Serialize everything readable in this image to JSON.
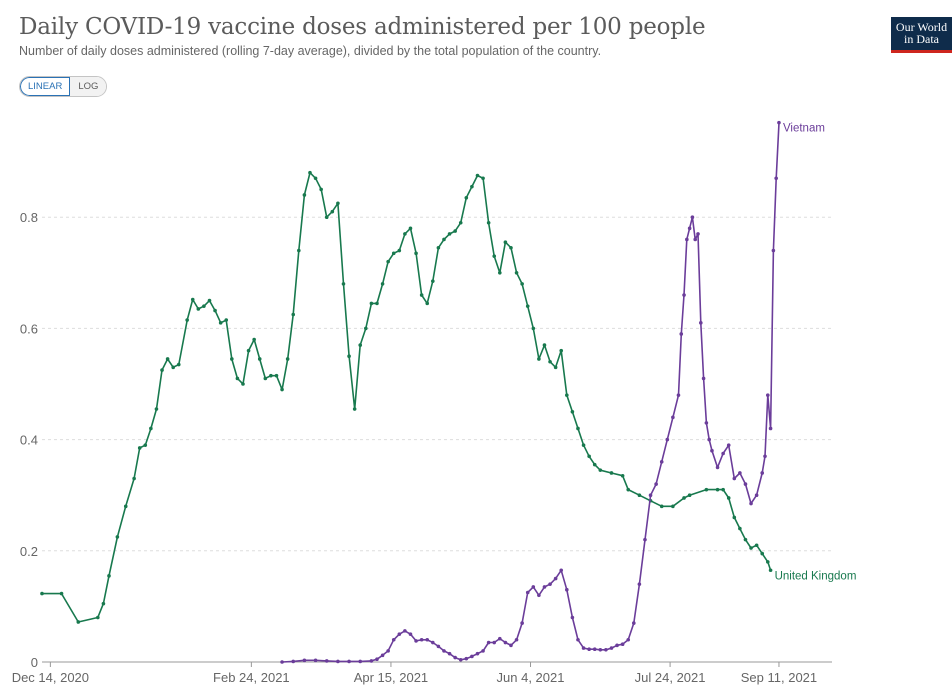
{
  "header": {
    "title": "Daily COVID-19 vaccine doses administered per 100 people",
    "subtitle": "Number of daily doses administered (rolling 7-day average), divided by the total population of the country.",
    "logo_line1": "Our World",
    "logo_line2": "in Data"
  },
  "controls": {
    "linear_label": "LINEAR",
    "log_label": "LOG",
    "selected": "LINEAR"
  },
  "colors": {
    "uk": "#18794e",
    "vietnam": "#6b3d9a",
    "grid": "#dddddd",
    "logo_bg": "#0f2c4b",
    "logo_accent": "#ce261e"
  },
  "chart_data": {
    "type": "line",
    "title": "Daily COVID-19 vaccine doses administered per 100 people",
    "xlabel": "",
    "ylabel": "",
    "x_unit": "days since 2020-12-11",
    "xlim": [
      0,
      283
    ],
    "ylim": [
      0,
      1.0
    ],
    "x_tick_values": [
      3,
      75,
      125,
      175,
      225,
      264
    ],
    "x_tick_labels": [
      "Dec 14, 2020",
      "Feb 24, 2021",
      "Apr 15, 2021",
      "Jun 4, 2021",
      "Jul 24, 2021",
      "Sep 11, 2021"
    ],
    "y_ticks": [
      0,
      0.2,
      0.4,
      0.6,
      0.8
    ],
    "y_tick_labels": [
      "0",
      "0.2",
      "0.4",
      "0.6",
      "0.8"
    ],
    "grid": "horizontal dashed",
    "series": [
      {
        "name": "United Kingdom",
        "end_label": "United Kingdom",
        "color": "#18794e",
        "points": [
          [
            0,
            0.123
          ],
          [
            7,
            0.123
          ],
          [
            13,
            0.072
          ],
          [
            20,
            0.08
          ],
          [
            22,
            0.105
          ],
          [
            24,
            0.155
          ],
          [
            27,
            0.225
          ],
          [
            30,
            0.28
          ],
          [
            33,
            0.33
          ],
          [
            35,
            0.385
          ],
          [
            37,
            0.39
          ],
          [
            39,
            0.42
          ],
          [
            41,
            0.455
          ],
          [
            43,
            0.525
          ],
          [
            45,
            0.545
          ],
          [
            47,
            0.53
          ],
          [
            49,
            0.535
          ],
          [
            52,
            0.615
          ],
          [
            54,
            0.652
          ],
          [
            56,
            0.635
          ],
          [
            58,
            0.64
          ],
          [
            60,
            0.65
          ],
          [
            62,
            0.632
          ],
          [
            64,
            0.61
          ],
          [
            66,
            0.615
          ],
          [
            68,
            0.545
          ],
          [
            70,
            0.51
          ],
          [
            72,
            0.5
          ],
          [
            74,
            0.56
          ],
          [
            76,
            0.58
          ],
          [
            78,
            0.545
          ],
          [
            80,
            0.51
          ],
          [
            82,
            0.515
          ],
          [
            84,
            0.515
          ],
          [
            86,
            0.49
          ],
          [
            88,
            0.545
          ],
          [
            90,
            0.625
          ],
          [
            92,
            0.74
          ],
          [
            94,
            0.84
          ],
          [
            96,
            0.88
          ],
          [
            98,
            0.87
          ],
          [
            100,
            0.85
          ],
          [
            102,
            0.8
          ],
          [
            104,
            0.81
          ],
          [
            106,
            0.825
          ],
          [
            108,
            0.68
          ],
          [
            110,
            0.55
          ],
          [
            112,
            0.455
          ],
          [
            114,
            0.57
          ],
          [
            116,
            0.6
          ],
          [
            118,
            0.645
          ],
          [
            120,
            0.645
          ],
          [
            122,
            0.68
          ],
          [
            124,
            0.72
          ],
          [
            126,
            0.735
          ],
          [
            128,
            0.74
          ],
          [
            130,
            0.77
          ],
          [
            132,
            0.78
          ],
          [
            134,
            0.735
          ],
          [
            136,
            0.66
          ],
          [
            138,
            0.645
          ],
          [
            140,
            0.685
          ],
          [
            142,
            0.745
          ],
          [
            144,
            0.76
          ],
          [
            146,
            0.77
          ],
          [
            148,
            0.775
          ],
          [
            150,
            0.79
          ],
          [
            152,
            0.835
          ],
          [
            154,
            0.855
          ],
          [
            156,
            0.875
          ],
          [
            158,
            0.87
          ],
          [
            160,
            0.79
          ],
          [
            162,
            0.73
          ],
          [
            164,
            0.7
          ],
          [
            166,
            0.755
          ],
          [
            168,
            0.745
          ],
          [
            170,
            0.7
          ],
          [
            172,
            0.68
          ],
          [
            174,
            0.64
          ],
          [
            176,
            0.6
          ],
          [
            178,
            0.545
          ],
          [
            180,
            0.57
          ],
          [
            182,
            0.54
          ],
          [
            184,
            0.53
          ],
          [
            186,
            0.56
          ],
          [
            188,
            0.48
          ],
          [
            190,
            0.45
          ],
          [
            192,
            0.42
          ],
          [
            194,
            0.39
          ],
          [
            196,
            0.37
          ],
          [
            198,
            0.355
          ],
          [
            200,
            0.345
          ],
          [
            204,
            0.34
          ],
          [
            208,
            0.335
          ],
          [
            210,
            0.31
          ],
          [
            214,
            0.3
          ],
          [
            218,
            0.29
          ],
          [
            222,
            0.28
          ],
          [
            226,
            0.28
          ],
          [
            230,
            0.295
          ],
          [
            232,
            0.3
          ],
          [
            238,
            0.31
          ],
          [
            242,
            0.31
          ],
          [
            244,
            0.31
          ],
          [
            246,
            0.295
          ],
          [
            248,
            0.26
          ],
          [
            250,
            0.24
          ],
          [
            252,
            0.22
          ],
          [
            254,
            0.205
          ],
          [
            256,
            0.21
          ],
          [
            258,
            0.195
          ],
          [
            260,
            0.18
          ],
          [
            261,
            0.165
          ]
        ]
      },
      {
        "name": "Vietnam",
        "end_label": "Vietnam",
        "color": "#6b3d9a",
        "points": [
          [
            86,
            0.0
          ],
          [
            90,
            0.001
          ],
          [
            94,
            0.003
          ],
          [
            98,
            0.003
          ],
          [
            102,
            0.002
          ],
          [
            106,
            0.001
          ],
          [
            110,
            0.001
          ],
          [
            114,
            0.001
          ],
          [
            118,
            0.002
          ],
          [
            120,
            0.005
          ],
          [
            122,
            0.012
          ],
          [
            124,
            0.02
          ],
          [
            126,
            0.04
          ],
          [
            128,
            0.05
          ],
          [
            130,
            0.056
          ],
          [
            132,
            0.05
          ],
          [
            134,
            0.038
          ],
          [
            136,
            0.04
          ],
          [
            138,
            0.04
          ],
          [
            140,
            0.035
          ],
          [
            142,
            0.028
          ],
          [
            144,
            0.02
          ],
          [
            146,
            0.015
          ],
          [
            148,
            0.008
          ],
          [
            150,
            0.004
          ],
          [
            152,
            0.006
          ],
          [
            154,
            0.01
          ],
          [
            156,
            0.015
          ],
          [
            158,
            0.02
          ],
          [
            160,
            0.035
          ],
          [
            162,
            0.035
          ],
          [
            164,
            0.042
          ],
          [
            166,
            0.035
          ],
          [
            168,
            0.03
          ],
          [
            170,
            0.04
          ],
          [
            172,
            0.07
          ],
          [
            174,
            0.125
          ],
          [
            176,
            0.135
          ],
          [
            178,
            0.12
          ],
          [
            180,
            0.135
          ],
          [
            182,
            0.14
          ],
          [
            184,
            0.15
          ],
          [
            186,
            0.165
          ],
          [
            188,
            0.13
          ],
          [
            190,
            0.08
          ],
          [
            192,
            0.04
          ],
          [
            194,
            0.025
          ],
          [
            196,
            0.023
          ],
          [
            198,
            0.023
          ],
          [
            200,
            0.022
          ],
          [
            202,
            0.022
          ],
          [
            204,
            0.025
          ],
          [
            206,
            0.03
          ],
          [
            208,
            0.032
          ],
          [
            210,
            0.04
          ],
          [
            212,
            0.07
          ],
          [
            214,
            0.14
          ],
          [
            216,
            0.22
          ],
          [
            218,
            0.3
          ],
          [
            220,
            0.32
          ],
          [
            222,
            0.36
          ],
          [
            224,
            0.4
          ],
          [
            226,
            0.44
          ],
          [
            228,
            0.48
          ],
          [
            229,
            0.59
          ],
          [
            230,
            0.66
          ],
          [
            231,
            0.76
          ],
          [
            232,
            0.78
          ],
          [
            233,
            0.8
          ],
          [
            234,
            0.76
          ],
          [
            235,
            0.77
          ],
          [
            236,
            0.61
          ],
          [
            237,
            0.51
          ],
          [
            238,
            0.43
          ],
          [
            239,
            0.4
          ],
          [
            240,
            0.38
          ],
          [
            242,
            0.35
          ],
          [
            244,
            0.375
          ],
          [
            246,
            0.39
          ],
          [
            248,
            0.33
          ],
          [
            250,
            0.34
          ],
          [
            252,
            0.32
          ],
          [
            254,
            0.285
          ],
          [
            256,
            0.3
          ],
          [
            258,
            0.34
          ],
          [
            259,
            0.37
          ],
          [
            260,
            0.48
          ],
          [
            261,
            0.42
          ],
          [
            262,
            0.74
          ],
          [
            263,
            0.87
          ],
          [
            264,
            0.97
          ]
        ]
      }
    ]
  }
}
